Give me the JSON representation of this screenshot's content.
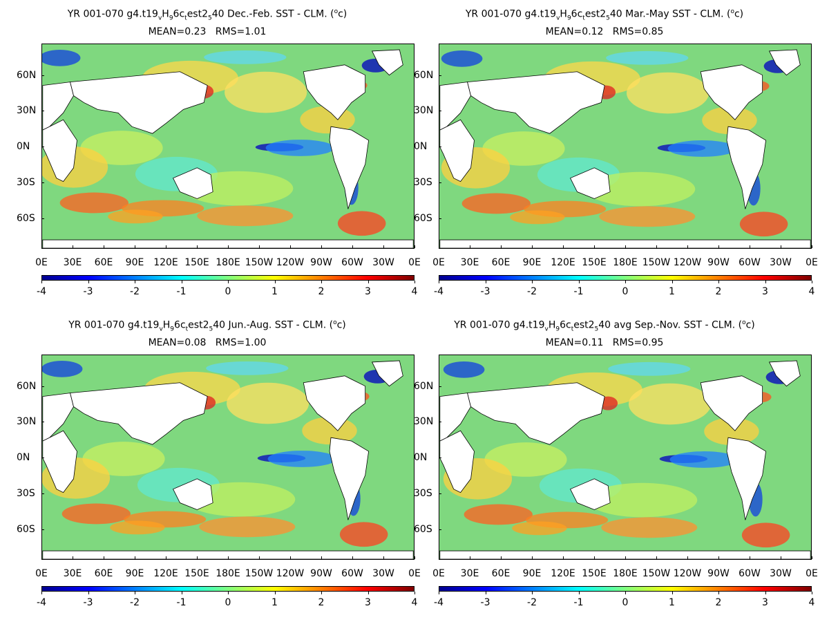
{
  "panels": [
    {
      "title_prefix": "YR 001-070 g4.t19",
      "title_sub1": "v",
      "title_mid1": "H",
      "title_sub2": "9",
      "title_mid2": "6c",
      "title_sub3": "t",
      "title_mid3": "est2",
      "title_sub4": "5",
      "title_suffix": "40  Dec.-Feb. SST - CLM. (",
      "title_sup": "o",
      "title_end": "c)",
      "stats": "MEAN=0.23   RMS=1.01"
    },
    {
      "title_prefix": "YR 001-070 g4.t19",
      "title_sub1": "v",
      "title_mid1": "H",
      "title_sub2": "9",
      "title_mid2": "6c",
      "title_sub3": "t",
      "title_mid3": "est2",
      "title_sub4": "5",
      "title_suffix": "40 Mar.-May SST - CLM. (",
      "title_sup": "o",
      "title_end": "c)",
      "stats": "MEAN=0.12   RMS=0.85"
    },
    {
      "title_prefix": "YR 001-070 g4.t19",
      "title_sub1": "v",
      "title_mid1": "H",
      "title_sub2": "9",
      "title_mid2": "6c",
      "title_sub3": "t",
      "title_mid3": "est2",
      "title_sub4": "5",
      "title_suffix": "40 Jun.-Aug. SST - CLM. (",
      "title_sup": "o",
      "title_end": "c)",
      "stats": "MEAN=0.08   RMS=1.00"
    },
    {
      "title_prefix": "YR 001-070 g4.t19",
      "title_sub1": "v",
      "title_mid1": "H",
      "title_sub2": "9",
      "title_mid2": "6c",
      "title_sub3": "t",
      "title_mid3": "est2",
      "title_sub4": "5",
      "title_suffix": "40 avg Sep.-Nov. SST - CLM. (",
      "title_sup": "o",
      "title_end": "c)",
      "stats": "MEAN=0.11   RMS=0.95"
    }
  ],
  "lat_labels": [
    "60N",
    "30N",
    "0N",
    "30S",
    "60S"
  ],
  "lon_labels": [
    "0E",
    "30E",
    "60E",
    "90E",
    "120E",
    "150E",
    "180E",
    "150W",
    "120W",
    "90W",
    "60W",
    "30W",
    "0E"
  ],
  "colorbar_labels": [
    "-4",
    "-3",
    "-2",
    "-1",
    "0",
    "1",
    "2",
    "3",
    "4"
  ],
  "colors": {
    "ocean_neutral": "#7fd87f",
    "land": "#ffffff",
    "cold_extreme": "#00008f",
    "warm_extreme": "#800000"
  }
}
